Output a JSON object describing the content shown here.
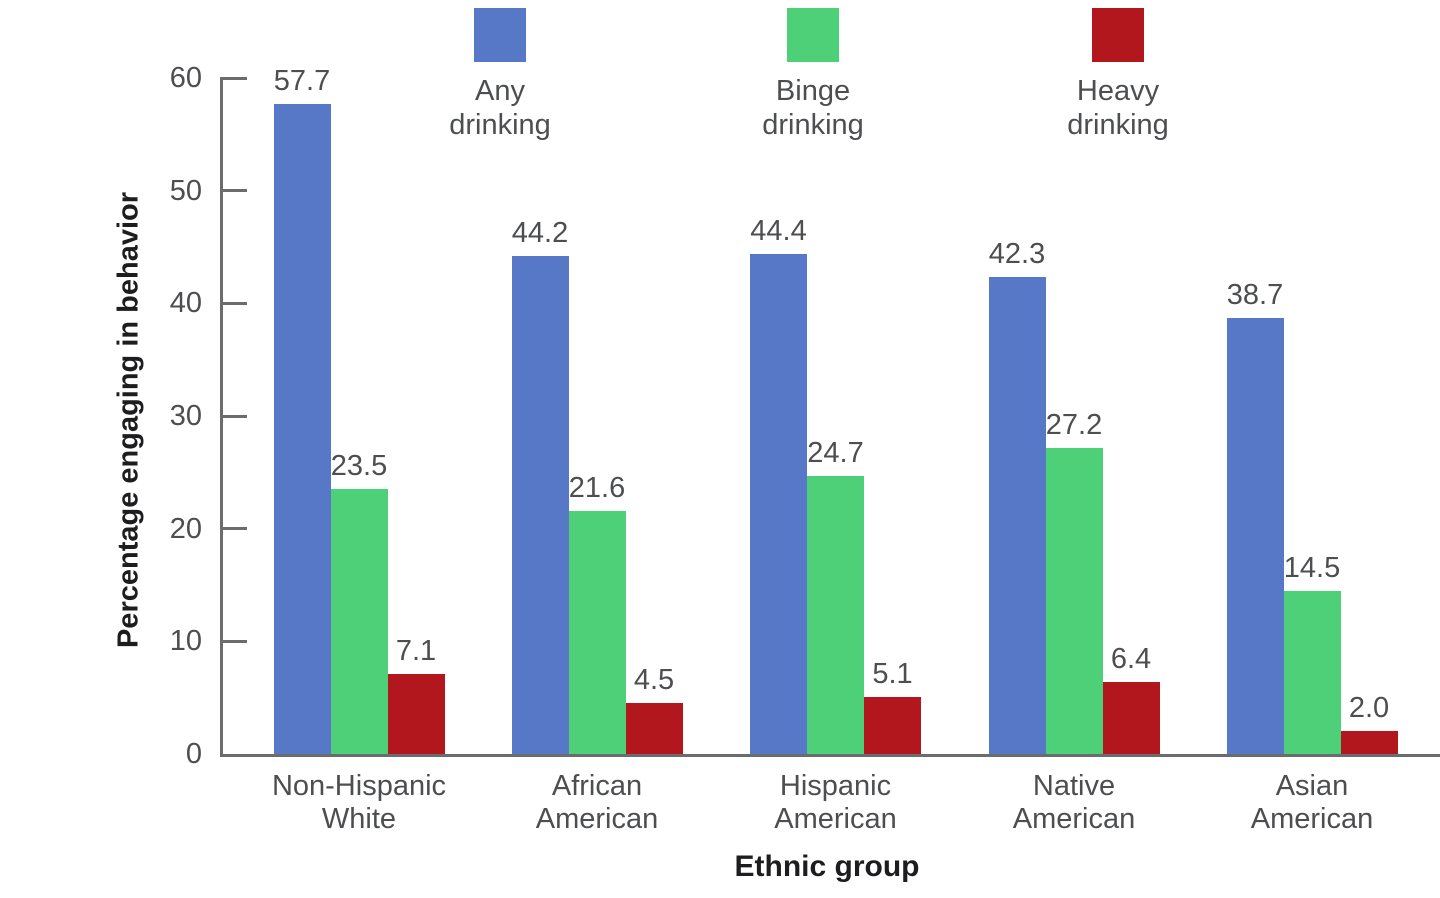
{
  "chart_data": {
    "type": "bar",
    "title": "",
    "xlabel": "Ethnic group",
    "ylabel": "Percentage engaging in behavior",
    "ylim": [
      0,
      60
    ],
    "yticks": [
      0,
      10,
      20,
      30,
      40,
      50,
      60
    ],
    "grid": false,
    "legend_position": "top",
    "value_labels_shown": true,
    "value_label_decimals": 1,
    "categories": [
      "Non-Hispanic White",
      "African American",
      "Hispanic American",
      "Native American",
      "Asian American"
    ],
    "series": [
      {
        "name": "Any drinking",
        "color": "#5678c6",
        "values": [
          57.7,
          44.2,
          44.4,
          42.3,
          38.7
        ]
      },
      {
        "name": "Binge drinking",
        "color": "#4dd077",
        "values": [
          23.5,
          21.6,
          24.7,
          27.2,
          14.5
        ]
      },
      {
        "name": "Heavy drinking",
        "color": "#b1171d",
        "values": [
          7.1,
          4.5,
          5.1,
          6.4,
          2.0
        ]
      }
    ],
    "colors": {
      "axis": "#6b6c6e",
      "tick_text": "#4d4e50",
      "category_text": "#4d4e50",
      "value_text": "#4d4e50",
      "axis_title_text": "#1d1d1f",
      "background": "#ffffff"
    }
  }
}
